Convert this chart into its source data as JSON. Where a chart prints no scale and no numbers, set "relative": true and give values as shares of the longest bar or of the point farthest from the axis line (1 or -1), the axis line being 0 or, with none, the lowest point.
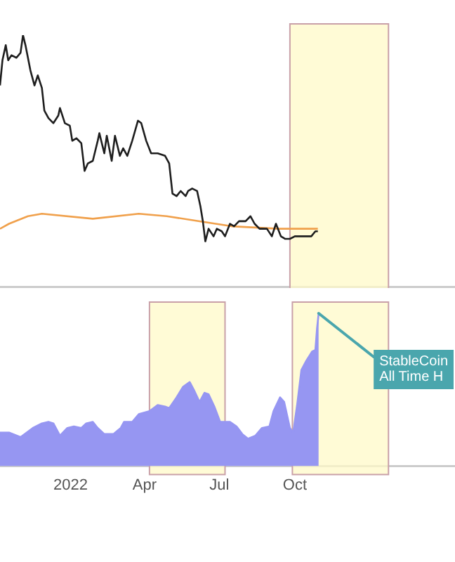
{
  "chart_data": [
    {
      "type": "line",
      "relative": true,
      "xlim": [
        "2021-10-07",
        "2023-04-14"
      ],
      "tick_labels": false,
      "bands": [
        {
          "axis": "x",
          "from": "2022-09-25",
          "to": "2023-01-23",
          "color": "#fffac8"
        }
      ],
      "series": [
        {
          "color": "#1e1e1e",
          "x": [
            "2021-10-07",
            "2021-10-10",
            "2021-10-14",
            "2021-10-17",
            "2021-10-21",
            "2021-10-27",
            "2021-11-01",
            "2021-11-04",
            "2021-11-07",
            "2021-11-13",
            "2021-11-18",
            "2021-11-22",
            "2021-11-27",
            "2021-11-30",
            "2021-12-05",
            "2021-12-11",
            "2021-12-17",
            "2021-12-19",
            "2021-12-25",
            "2021-12-31",
            "2022-01-03",
            "2022-01-08",
            "2022-01-14",
            "2022-01-18",
            "2022-01-22",
            "2022-01-28",
            "2022-02-03",
            "2022-02-05",
            "2022-02-11",
            "2022-02-14",
            "2022-02-20",
            "2022-02-24",
            "2022-03-02",
            "2022-03-06",
            "2022-03-11",
            "2022-03-17",
            "2022-03-24",
            "2022-03-28",
            "2022-04-03",
            "2022-04-09",
            "2022-04-17",
            "2022-04-26",
            "2022-05-01",
            "2022-05-05",
            "2022-05-10",
            "2022-05-15",
            "2022-05-21",
            "2022-05-24",
            "2022-05-29",
            "2022-06-04",
            "2022-06-08",
            "2022-06-11",
            "2022-06-14",
            "2022-06-18",
            "2022-06-24",
            "2022-06-28",
            "2022-07-04",
            "2022-07-08",
            "2022-07-14",
            "2022-07-19",
            "2022-07-25",
            "2022-08-02",
            "2022-08-08",
            "2022-08-13",
            "2022-08-19",
            "2022-08-28",
            "2022-09-03",
            "2022-09-08",
            "2022-09-14",
            "2022-09-19",
            "2022-09-25",
            "2022-10-01",
            "2022-10-06",
            "2022-10-15",
            "2022-10-21",
            "2022-10-26",
            "2022-10-29"
          ],
          "values": [
            0.8,
            0.9,
            0.96,
            0.9,
            0.92,
            0.91,
            0.93,
            1.0,
            0.96,
            0.86,
            0.8,
            0.84,
            0.79,
            0.7,
            0.67,
            0.65,
            0.68,
            0.71,
            0.65,
            0.64,
            0.58,
            0.59,
            0.57,
            0.46,
            0.49,
            0.5,
            0.58,
            0.61,
            0.53,
            0.6,
            0.5,
            0.6,
            0.52,
            0.55,
            0.52,
            0.58,
            0.66,
            0.65,
            0.58,
            0.53,
            0.53,
            0.52,
            0.49,
            0.37,
            0.36,
            0.38,
            0.36,
            0.38,
            0.39,
            0.38,
            0.32,
            0.26,
            0.18,
            0.23,
            0.2,
            0.23,
            0.22,
            0.2,
            0.25,
            0.24,
            0.26,
            0.26,
            0.28,
            0.25,
            0.23,
            0.23,
            0.2,
            0.25,
            0.2,
            0.19,
            0.19,
            0.2,
            0.2,
            0.2,
            0.2,
            0.22,
            0.22
          ]
        },
        {
          "color": "#f0a04b",
          "x": [
            "2021-10-07",
            "2021-10-18",
            "2021-11-10",
            "2021-11-27",
            "2022-01-28",
            "2022-03-25",
            "2022-04-28",
            "2022-06-07",
            "2022-07-16",
            "2022-09-11",
            "2022-10-29"
          ],
          "values": [
            0.23,
            0.25,
            0.28,
            0.29,
            0.27,
            0.29,
            0.28,
            0.26,
            0.24,
            0.23,
            0.23
          ]
        }
      ]
    },
    {
      "type": "area",
      "relative": true,
      "xlim": [
        "2021-10-07",
        "2023-04-14"
      ],
      "tick_labels": "x",
      "xticks": [
        {
          "value": "2022-01-01",
          "label": "2022"
        },
        {
          "value": "2022-04-01",
          "label": "Apr"
        },
        {
          "value": "2022-07-01",
          "label": "Jul"
        },
        {
          "value": "2022-10-01",
          "label": "Oct"
        }
      ],
      "bands": [
        {
          "axis": "x",
          "from": "2022-04-07",
          "to": "2022-07-08",
          "color": "#fffac8"
        },
        {
          "axis": "x",
          "from": "2022-09-28",
          "to": "2023-01-23",
          "color": "#fffac8"
        }
      ],
      "annotations": [
        {
          "text": "StableCoin All Time H",
          "x": "2022-10-30",
          "y": 1
        }
      ],
      "series": [
        {
          "color": "#9696f2",
          "x": [
            "2021-10-07",
            "2021-10-18",
            "2021-11-01",
            "2021-11-16",
            "2021-11-27",
            "2021-12-05",
            "2021-12-11",
            "2021-12-19",
            "2021-12-28",
            "2022-01-05",
            "2022-01-14",
            "2022-01-20",
            "2022-01-28",
            "2022-02-03",
            "2022-02-11",
            "2022-02-22",
            "2022-03-03",
            "2022-03-07",
            "2022-03-17",
            "2022-03-25",
            "2022-04-07",
            "2022-04-17",
            "2022-04-26",
            "2022-05-01",
            "2022-05-10",
            "2022-05-18",
            "2022-05-26",
            "2022-05-31",
            "2022-06-07",
            "2022-06-13",
            "2022-06-18",
            "2022-06-25",
            "2022-07-02",
            "2022-07-14",
            "2022-07-22",
            "2022-07-29",
            "2022-08-05",
            "2022-08-14",
            "2022-08-22",
            "2022-08-31",
            "2022-09-05",
            "2022-09-13",
            "2022-09-18",
            "2022-09-25",
            "2022-09-29",
            "2022-10-04",
            "2022-10-09",
            "2022-10-15",
            "2022-10-22",
            "2022-10-26",
            "2022-10-28",
            "2022-10-30"
          ],
          "values": [
            0.22,
            0.22,
            0.19,
            0.25,
            0.28,
            0.29,
            0.28,
            0.2,
            0.25,
            0.26,
            0.25,
            0.28,
            0.29,
            0.25,
            0.21,
            0.21,
            0.25,
            0.29,
            0.29,
            0.34,
            0.36,
            0.4,
            0.39,
            0.38,
            0.45,
            0.52,
            0.55,
            0.5,
            0.42,
            0.48,
            0.47,
            0.39,
            0.29,
            0.29,
            0.26,
            0.21,
            0.18,
            0.2,
            0.25,
            0.26,
            0.36,
            0.45,
            0.42,
            0.25,
            0.22,
            0.41,
            0.63,
            0.69,
            0.75,
            0.76,
            0.9,
            1.0
          ]
        }
      ]
    }
  ]
}
